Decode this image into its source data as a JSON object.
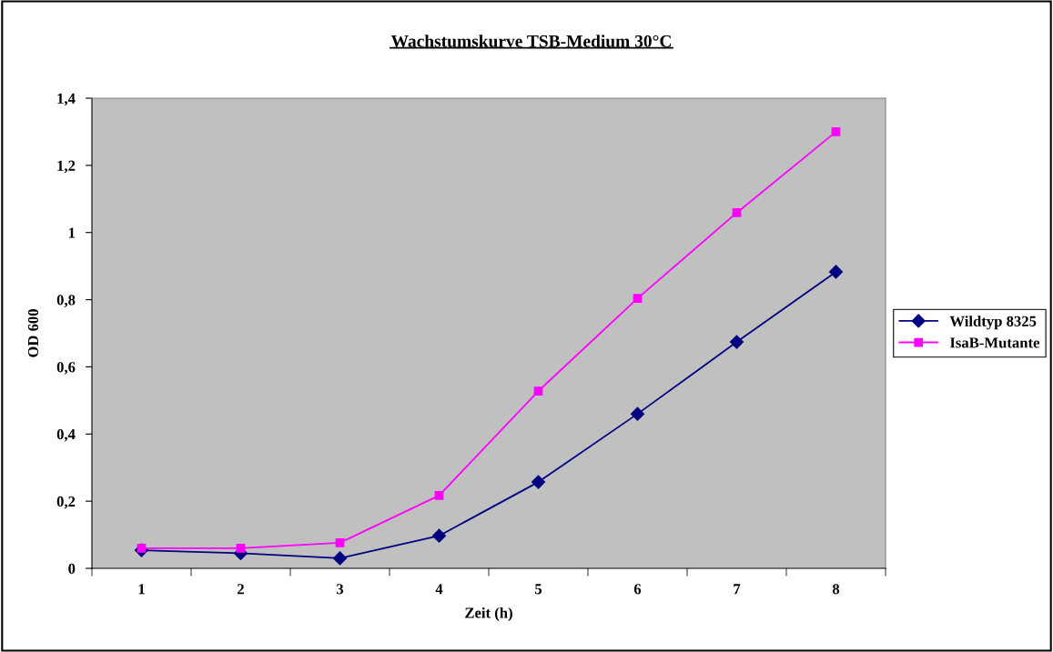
{
  "chart_data": {
    "type": "line",
    "title": "Wachstumskurve TSB-Medium 30°C",
    "xlabel": "Zeit (h)",
    "ylabel": "OD 600",
    "categories": [
      "1",
      "2",
      "3",
      "4",
      "5",
      "6",
      "7",
      "8"
    ],
    "series": [
      {
        "name": "Wildtyp 8325",
        "color": "#000080",
        "marker": "diamond",
        "values": [
          0.054,
          0.045,
          0.03,
          0.097,
          0.257,
          0.46,
          0.674,
          0.883
        ]
      },
      {
        "name": "IsaB-Mutante",
        "color": "#ff00ff",
        "marker": "square",
        "values": [
          0.06,
          0.06,
          0.076,
          0.217,
          0.528,
          0.804,
          1.059,
          1.3
        ]
      }
    ],
    "ylim": [
      0,
      1.4
    ],
    "yticks": [
      0,
      {
        "value": 0.2,
        "label": "0,2"
      },
      {
        "value": 0.4,
        "label": "0,4"
      },
      {
        "value": 0.6,
        "label": "0,6"
      },
      {
        "value": 0.8,
        "label": "0,8"
      },
      1,
      {
        "value": 1.2,
        "label": "1,2"
      },
      {
        "value": 1.4,
        "label": "1,4"
      }
    ],
    "grid": false,
    "legend": "right",
    "line_style": "solid"
  }
}
